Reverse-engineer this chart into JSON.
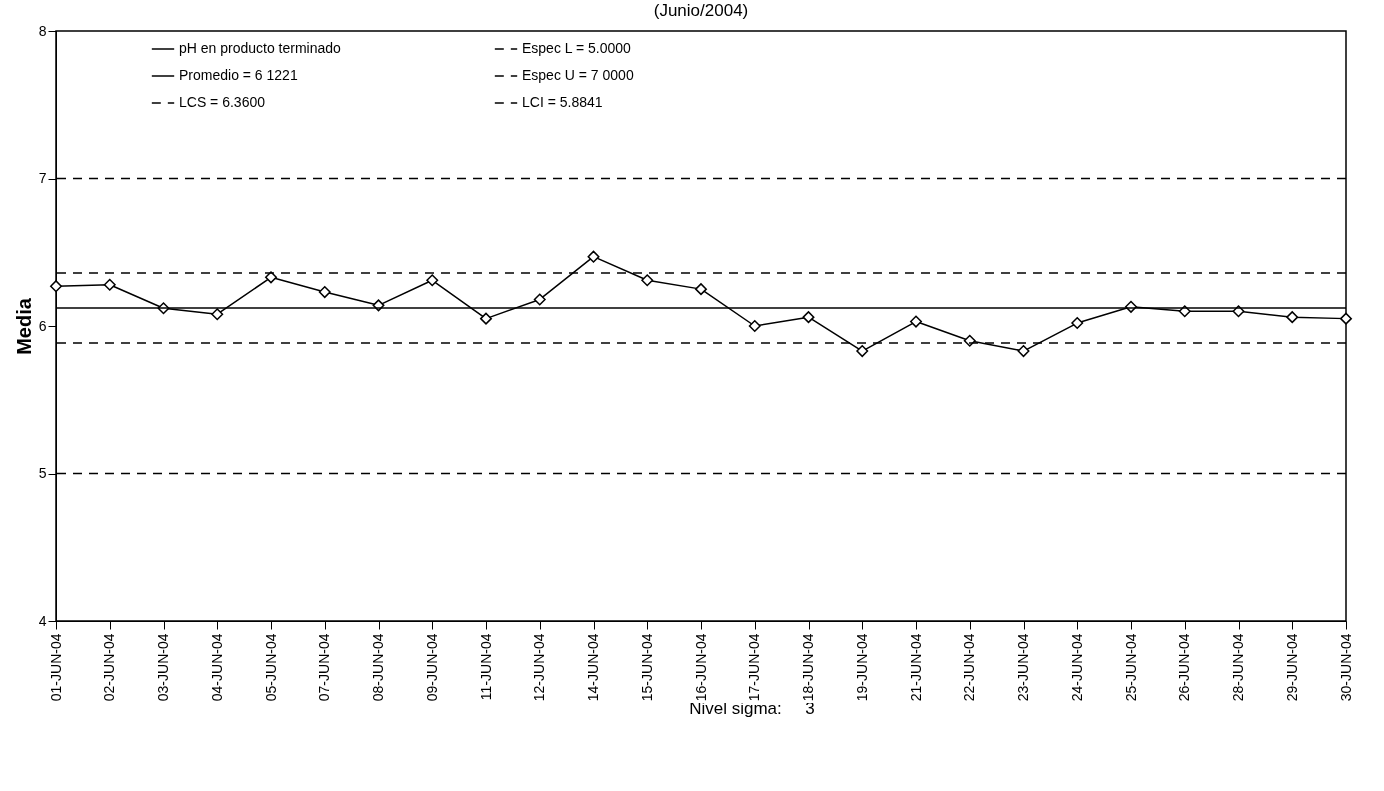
{
  "chart_data": {
    "type": "line",
    "title": "(Junio/2004)",
    "ylabel": "Media",
    "categories": [
      "01-JUN-04",
      "02-JUN-04",
      "03-JUN-04",
      "04-JUN-04",
      "05-JUN-04",
      "07-JUN-04",
      "08-JUN-04",
      "09-JUN-04",
      "11-JUN-04",
      "12-JUN-04",
      "14-JUN-04",
      "15-JUN-04",
      "16-JUN-04",
      "17-JUN-04",
      "18-JUN-04",
      "19-JUN-04",
      "21-JUN-04",
      "22-JUN-04",
      "23-JUN-04",
      "24-JUN-04",
      "25-JUN-04",
      "26-JUN-04",
      "28-JUN-04",
      "29-JUN-04",
      "30-JUN-04"
    ],
    "series": [
      {
        "name": "pH en producto terminado",
        "color": "#000000",
        "values": [
          6.27,
          6.28,
          6.12,
          6.08,
          6.33,
          6.23,
          6.14,
          6.31,
          6.05,
          6.18,
          6.47,
          6.31,
          6.25,
          6.0,
          6.06,
          5.83,
          6.03,
          5.9,
          5.83,
          6.02,
          6.13,
          6.1,
          6.1,
          6.06,
          6.05
        ]
      }
    ],
    "ylim": [
      4,
      8
    ],
    "yticks": [
      4,
      5,
      6,
      7,
      8
    ],
    "grid": false,
    "legend": "top",
    "marker": "diamond",
    "line_style": "solid",
    "ref_lines": [
      {
        "axis": "y",
        "value": 6.1221,
        "label": "Promedio = 6 1221",
        "color": "#000000",
        "line_style": "solid"
      },
      {
        "axis": "y",
        "value": 6.36,
        "label": "LCS = 6.3600",
        "color": "#000000",
        "line_style": "dashed"
      },
      {
        "axis": "y",
        "value": 5.0,
        "label": "Espec L = 5.0000",
        "color": "#000000",
        "line_style": "dashed"
      },
      {
        "axis": "y",
        "value": 7.0,
        "label": "Espec U = 7 0000",
        "color": "#000000",
        "line_style": "dashed"
      },
      {
        "axis": "y",
        "value": 5.8841,
        "label": "LCI = 5.8841",
        "color": "#000000",
        "line_style": "dashed"
      }
    ],
    "annotations": [
      "Nivel sigma:     3"
    ]
  }
}
